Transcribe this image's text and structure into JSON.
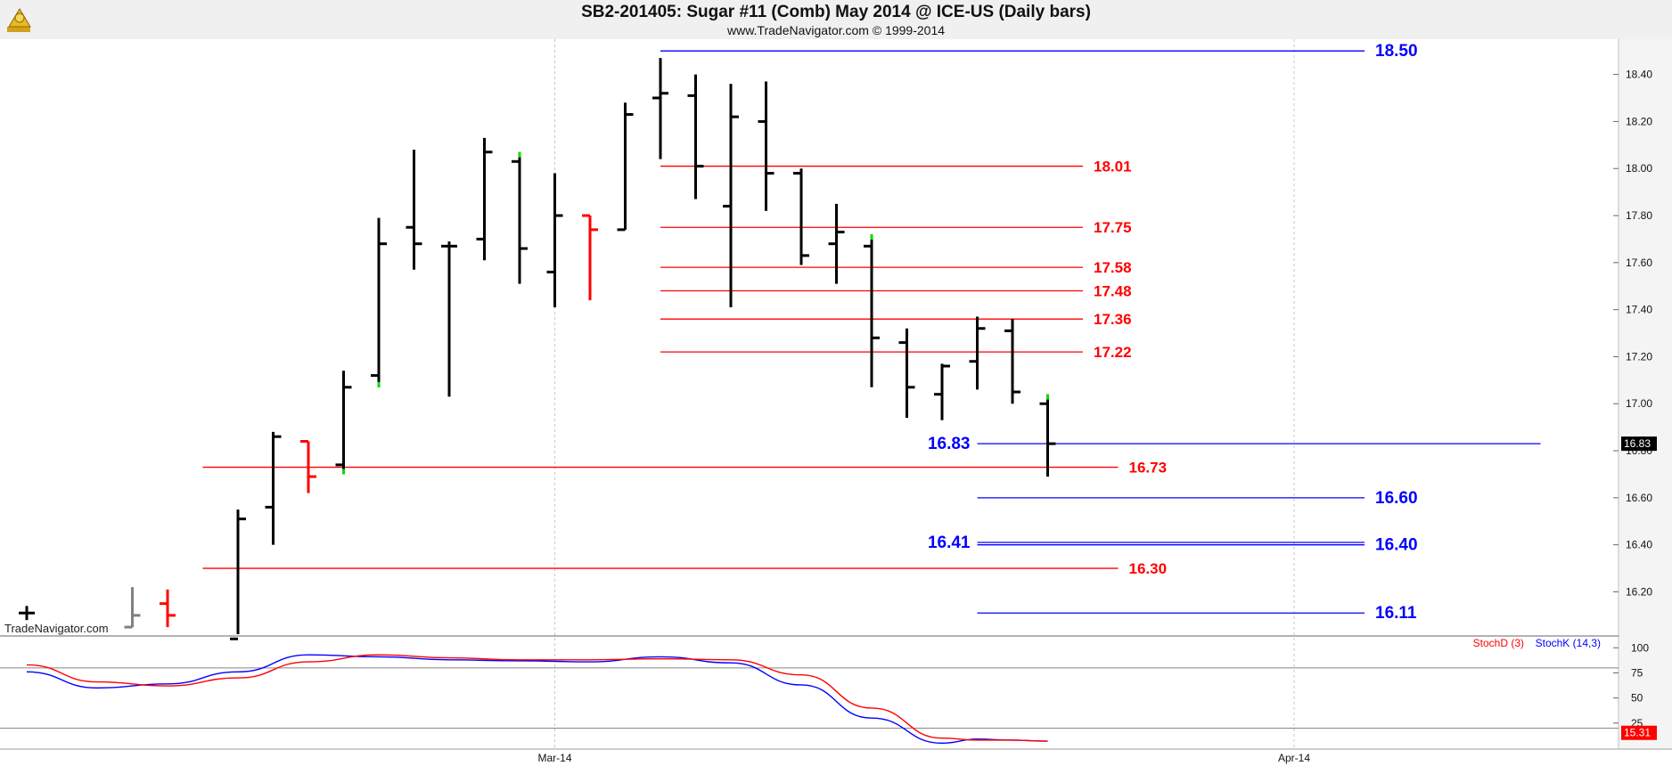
{
  "header": {
    "title": "SB2-201405:  Sugar #11 (Comb) May 2014 @ ICE-US  (Daily bars)",
    "subtitle": "www.TradeNavigator.com © 1999-2014"
  },
  "watermark": "TradeNavigator.com",
  "colors": {
    "bar_default": "#000000",
    "bar_down": "#ff0000",
    "bar_gray": "#808080",
    "bar_highlight": "#00dd00",
    "blue_level": "#0000ff",
    "red_level": "#ff0000",
    "stoch_d": "#ff0000",
    "stoch_k": "#0000ff",
    "grid": "#c8c8c8"
  },
  "chart_data": [
    {
      "type": "ohlc",
      "title": "SB2-201405:  Sugar #11 (Comb) May 2014 @ ICE-US  (Daily bars)",
      "x_labels": [
        {
          "label": "Mar-14",
          "x": 15
        },
        {
          "label": "Apr-14",
          "x": 36
        }
      ],
      "ylim": [
        16.02,
        18.55
      ],
      "y_ticks": [
        "18.40",
        "18.20",
        "18.00",
        "17.80",
        "17.60",
        "17.40",
        "17.20",
        "17.00",
        "16.80",
        "16.60",
        "16.40",
        "16.20"
      ],
      "last_price": "16.83",
      "bars": [
        {
          "x": 0,
          "o": 16.11,
          "h": 16.14,
          "l": 16.08,
          "c": 16.11,
          "color": "black"
        },
        {
          "x": 3,
          "o": 16.05,
          "h": 16.22,
          "l": 16.05,
          "c": 16.1,
          "color": "gray"
        },
        {
          "x": 4,
          "o": 16.15,
          "h": 16.21,
          "l": 16.05,
          "c": 16.1,
          "color": "red"
        },
        {
          "x": 6,
          "o": 16.0,
          "h": 16.55,
          "l": 16.0,
          "c": 16.51,
          "color": "black"
        },
        {
          "x": 7,
          "o": 16.56,
          "h": 16.88,
          "l": 16.4,
          "c": 16.86,
          "color": "black"
        },
        {
          "x": 8,
          "o": 16.84,
          "h": 16.84,
          "l": 16.62,
          "c": 16.69,
          "color": "red"
        },
        {
          "x": 9,
          "o": 16.74,
          "h": 17.14,
          "l": 16.7,
          "c": 17.07,
          "color": "black",
          "low_mark": true
        },
        {
          "x": 10,
          "o": 17.12,
          "h": 17.79,
          "l": 17.07,
          "c": 17.68,
          "color": "black",
          "low_mark": true
        },
        {
          "x": 11,
          "o": 17.75,
          "h": 18.08,
          "l": 17.57,
          "c": 17.68,
          "color": "black"
        },
        {
          "x": 12,
          "o": 17.67,
          "h": 17.69,
          "l": 17.03,
          "c": 17.67,
          "color": "black"
        },
        {
          "x": 13,
          "o": 17.7,
          "h": 18.13,
          "l": 17.61,
          "c": 18.07,
          "color": "black"
        },
        {
          "x": 14,
          "o": 18.03,
          "h": 18.07,
          "l": 17.51,
          "c": 17.66,
          "color": "black",
          "high_mark": true
        },
        {
          "x": 15,
          "o": 17.56,
          "h": 17.98,
          "l": 17.41,
          "c": 17.8,
          "color": "black"
        },
        {
          "x": 16,
          "o": 17.8,
          "h": 17.8,
          "l": 17.44,
          "c": 17.74,
          "color": "red"
        },
        {
          "x": 17,
          "o": 17.74,
          "h": 18.28,
          "l": 17.74,
          "c": 18.23,
          "color": "black"
        },
        {
          "x": 18,
          "o": 18.3,
          "h": 18.47,
          "l": 18.04,
          "c": 18.32,
          "color": "black"
        },
        {
          "x": 19,
          "o": 18.31,
          "h": 18.4,
          "l": 17.87,
          "c": 18.01,
          "color": "black"
        },
        {
          "x": 20,
          "o": 17.84,
          "h": 18.36,
          "l": 17.41,
          "c": 18.22,
          "color": "black"
        },
        {
          "x": 21,
          "o": 18.2,
          "h": 18.37,
          "l": 17.82,
          "c": 17.98,
          "color": "black"
        },
        {
          "x": 22,
          "o": 17.98,
          "h": 18.0,
          "l": 17.59,
          "c": 17.63,
          "color": "black"
        },
        {
          "x": 23,
          "o": 17.68,
          "h": 17.85,
          "l": 17.51,
          "c": 17.73,
          "color": "black"
        },
        {
          "x": 24,
          "o": 17.67,
          "h": 17.72,
          "l": 17.07,
          "c": 17.28,
          "color": "black",
          "high_mark": true
        },
        {
          "x": 25,
          "o": 17.26,
          "h": 17.32,
          "l": 16.94,
          "c": 17.07,
          "color": "black"
        },
        {
          "x": 26,
          "o": 17.04,
          "h": 17.17,
          "l": 16.93,
          "c": 17.16,
          "color": "black"
        },
        {
          "x": 27,
          "o": 17.18,
          "h": 17.37,
          "l": 17.06,
          "c": 17.32,
          "color": "black"
        },
        {
          "x": 28,
          "o": 17.31,
          "h": 17.36,
          "l": 17.0,
          "c": 17.05,
          "color": "black"
        },
        {
          "x": 29,
          "o": 17.0,
          "h": 17.04,
          "l": 16.69,
          "c": 16.83,
          "color": "black",
          "high_mark": true
        }
      ],
      "levels": [
        {
          "label": "18.50",
          "value": 18.5,
          "color": "blue",
          "x_start": 18,
          "x_end": 38,
          "label_side": "right"
        },
        {
          "label": "18.01",
          "value": 18.01,
          "color": "red",
          "x_start": 18,
          "x_end": 30,
          "label_side": "mid"
        },
        {
          "label": "17.75",
          "value": 17.75,
          "color": "red",
          "x_start": 18,
          "x_end": 30,
          "label_side": "mid"
        },
        {
          "label": "17.58",
          "value": 17.58,
          "color": "red",
          "x_start": 18,
          "x_end": 30,
          "label_side": "mid"
        },
        {
          "label": "17.48",
          "value": 17.48,
          "color": "red",
          "x_start": 18,
          "x_end": 30,
          "label_side": "mid"
        },
        {
          "label": "17.36",
          "value": 17.36,
          "color": "red",
          "x_start": 18,
          "x_end": 30,
          "label_side": "mid"
        },
        {
          "label": "17.22",
          "value": 17.22,
          "color": "red",
          "x_start": 18,
          "x_end": 30,
          "label_side": "mid"
        },
        {
          "label": "16.83",
          "value": 16.83,
          "color": "blue",
          "x_start": 27,
          "x_end": 43,
          "label_side": "left"
        },
        {
          "label": "16.73",
          "value": 16.73,
          "color": "red",
          "x_start": 5,
          "x_end": 31,
          "label_side": "mid"
        },
        {
          "label": "16.60",
          "value": 16.6,
          "color": "blue",
          "x_start": 27,
          "x_end": 38,
          "label_side": "right"
        },
        {
          "label": "16.41",
          "value": 16.41,
          "color": "blue",
          "x_start": 27,
          "x_end": 38,
          "label_side": "left"
        },
        {
          "label": "16.40",
          "value": 16.4,
          "color": "blue",
          "x_start": 27,
          "x_end": 38,
          "label_side": "right"
        },
        {
          "label": "16.30",
          "value": 16.3,
          "color": "red",
          "x_start": 5,
          "x_end": 31,
          "label_side": "mid"
        },
        {
          "label": "16.11",
          "value": 16.11,
          "color": "blue",
          "x_start": 27,
          "x_end": 38,
          "label_side": "right"
        }
      ]
    },
    {
      "type": "line",
      "legend": [
        "StochD (3)",
        "StochK (14,3)"
      ],
      "ylim": [
        0,
        110
      ],
      "y_ticks": [
        "100",
        "75",
        "50",
        "25"
      ],
      "last_value": "15.31",
      "reference_lines": [
        80,
        20
      ],
      "series": [
        {
          "name": "StochK (14,3)",
          "color": "blue",
          "x": [
            0,
            2,
            4,
            6,
            8,
            10,
            12,
            14,
            16,
            18,
            20,
            22,
            24,
            26,
            27,
            28,
            29
          ],
          "values": [
            76,
            60,
            64,
            76,
            93,
            91,
            88,
            87,
            86,
            91,
            85,
            63,
            30,
            5,
            9,
            8,
            7
          ]
        },
        {
          "name": "StochD (3)",
          "color": "red",
          "x": [
            0,
            2,
            4,
            6,
            8,
            10,
            12,
            14,
            16,
            18,
            20,
            22,
            24,
            26,
            27,
            28,
            29
          ],
          "values": [
            83,
            66,
            62,
            70,
            86,
            93,
            90,
            88,
            88,
            89,
            88,
            73,
            40,
            10,
            8,
            8,
            7
          ]
        }
      ]
    }
  ]
}
